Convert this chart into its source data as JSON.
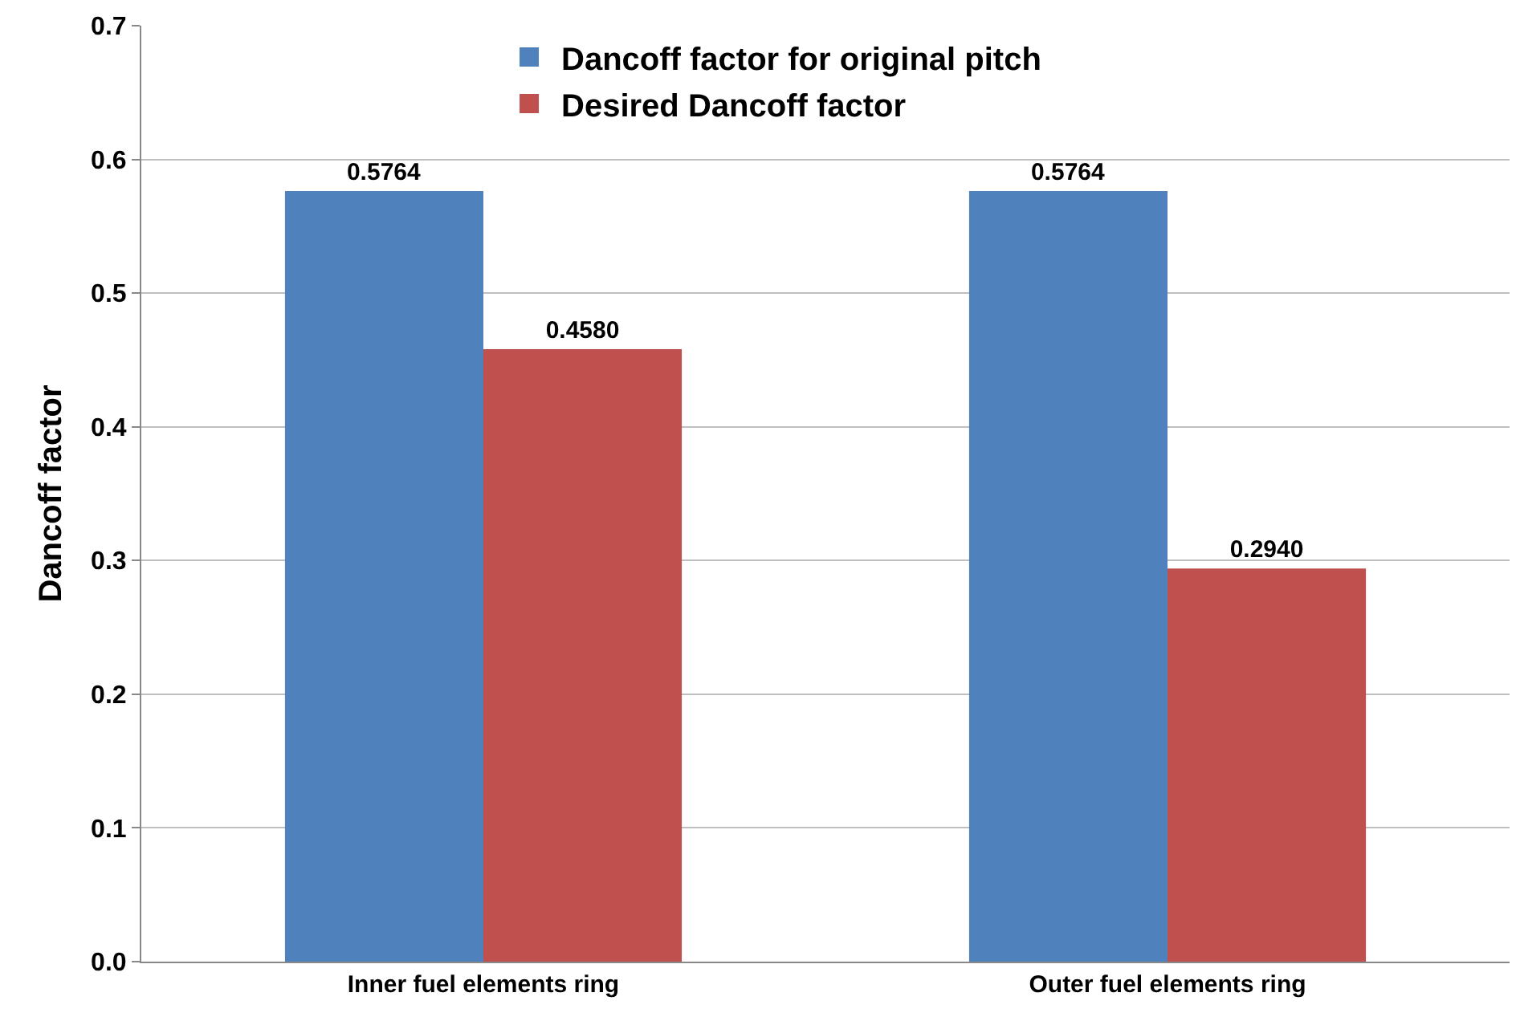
{
  "chart_data": {
    "type": "bar",
    "ylabel": "Dancoff factor",
    "categories": [
      "Inner fuel elements ring",
      "Outer fuel elements ring"
    ],
    "series": [
      {
        "name": "Dancoff factor for original pitch",
        "color": "#4f81bd",
        "values": [
          0.5764,
          0.5764
        ],
        "value_labels": [
          "0.5764",
          "0.5764"
        ]
      },
      {
        "name": "Desired Dancoff factor",
        "color": "#c0504d",
        "values": [
          0.458,
          0.294
        ],
        "value_labels": [
          "0.4580",
          "0.2940"
        ]
      }
    ],
    "ylim": [
      0,
      0.7
    ],
    "yticks": [
      {
        "value": 0,
        "label": "0.0"
      },
      0.1,
      0.2,
      0.3,
      0.4,
      0.5,
      0.6,
      0.7
    ],
    "grid": "y",
    "legend": "top"
  }
}
